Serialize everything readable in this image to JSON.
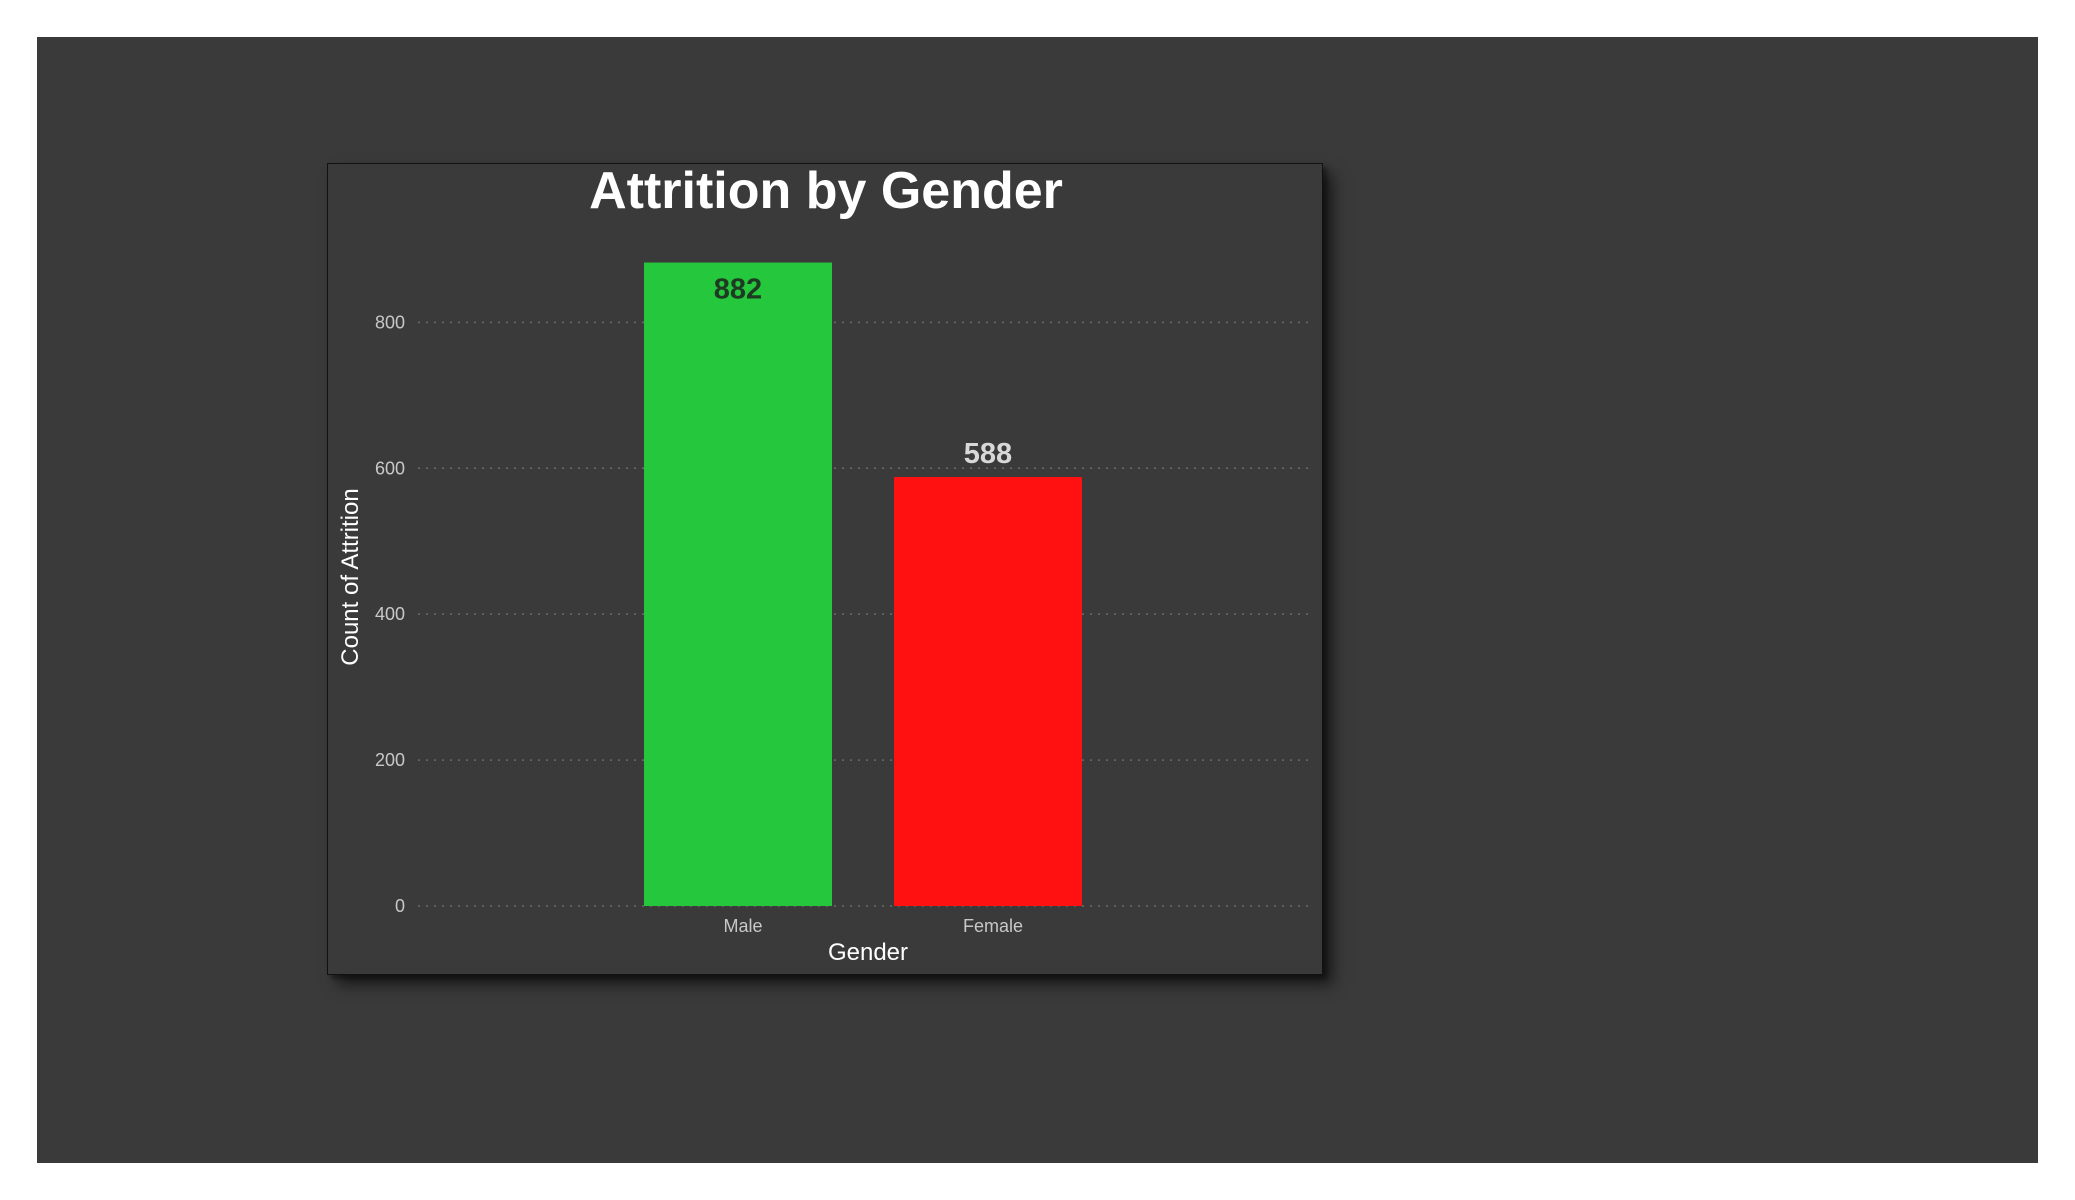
{
  "chart_data": {
    "type": "bar",
    "title": "Attrition by Gender",
    "xlabel": "Gender",
    "ylabel": "Count of Attrition",
    "categories": [
      "Male",
      "Female"
    ],
    "values": [
      882,
      588
    ],
    "value_labels": [
      "882",
      "588"
    ],
    "bar_colors": [
      "#25c73c",
      "#ff1111"
    ],
    "label_colors": [
      "#1e3a22",
      "#d8d8d8"
    ],
    "ylim": [
      0,
      880
    ],
    "yticks": [
      0,
      200,
      400,
      600,
      800
    ],
    "ytick_labels": [
      "0",
      "200",
      "400",
      "600",
      "800"
    ],
    "grid": true,
    "legend": "none"
  },
  "colors": {
    "canvas_background": "#3a3a3a",
    "page_background": "#ffffff",
    "title_color": "#ffffff",
    "tick_color": "#c8c8c8"
  }
}
